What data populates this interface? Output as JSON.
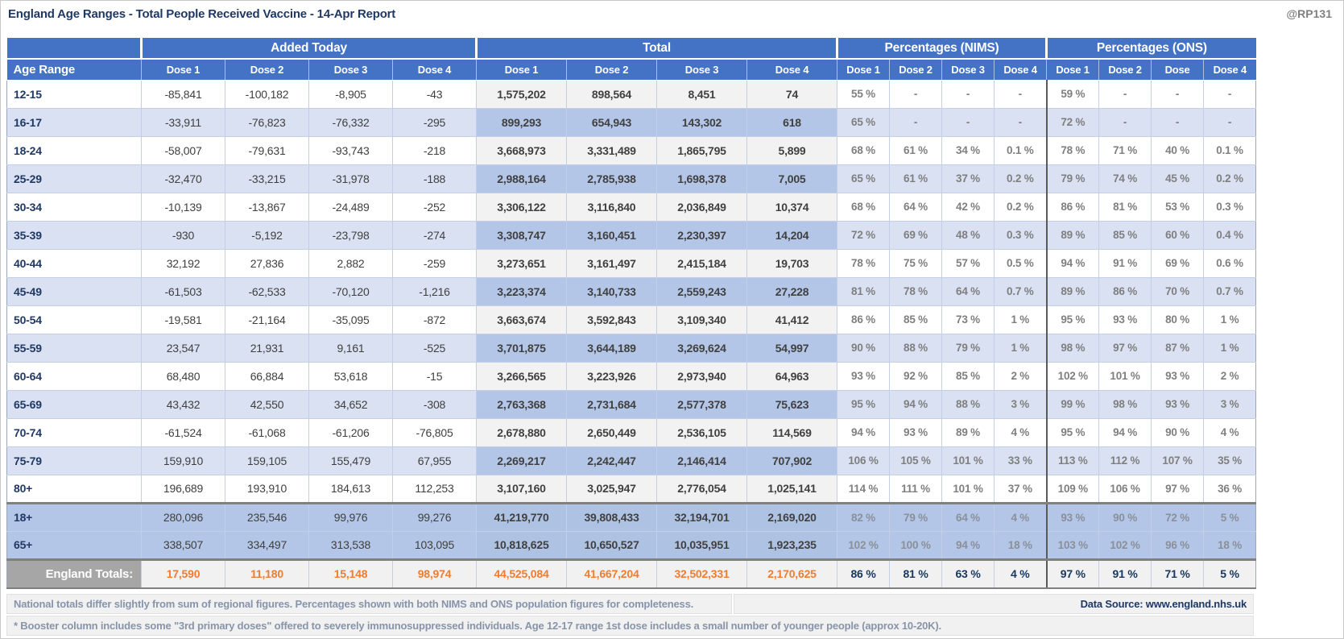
{
  "header": {
    "title": "England Age Ranges - Total People Received Vaccine - 14-Apr Report",
    "watermark": "@RP131"
  },
  "chart_data": {
    "type": "table",
    "row_header": "Age Range",
    "groups": [
      {
        "label": "Added Today",
        "columns": [
          "Dose 1",
          "Dose 2",
          "Dose 3",
          "Dose 4"
        ]
      },
      {
        "label": "Total",
        "columns": [
          "Dose 1",
          "Dose 2",
          "Dose 3",
          "Dose 4"
        ]
      },
      {
        "label": "Percentages (NIMS)",
        "columns": [
          "Dose 1",
          "Dose 2",
          "Dose 3",
          "Dose 4"
        ]
      },
      {
        "label": "Percentages (ONS)",
        "columns": [
          "Dose 1",
          "Dose 2",
          "Dose",
          "Dose 4"
        ]
      }
    ],
    "rows": [
      {
        "age": "12-15",
        "kind": "data",
        "added": [
          "-85,841",
          "-100,182",
          "-8,905",
          "-43"
        ],
        "total": [
          "1,575,202",
          "898,564",
          "8,451",
          "74"
        ],
        "nims": [
          "55 %",
          "-",
          "-",
          "-"
        ],
        "ons": [
          "59 %",
          "-",
          "-",
          "-"
        ]
      },
      {
        "age": "16-17",
        "kind": "data",
        "added": [
          "-33,911",
          "-76,823",
          "-76,332",
          "-295"
        ],
        "total": [
          "899,293",
          "654,943",
          "143,302",
          "618"
        ],
        "nims": [
          "65 %",
          "-",
          "-",
          "-"
        ],
        "ons": [
          "72 %",
          "-",
          "-",
          "-"
        ]
      },
      {
        "age": "18-24",
        "kind": "data",
        "added": [
          "-58,007",
          "-79,631",
          "-93,743",
          "-218"
        ],
        "total": [
          "3,668,973",
          "3,331,489",
          "1,865,795",
          "5,899"
        ],
        "nims": [
          "68 %",
          "61 %",
          "34 %",
          "0.1 %"
        ],
        "ons": [
          "78 %",
          "71 %",
          "40 %",
          "0.1 %"
        ]
      },
      {
        "age": "25-29",
        "kind": "data",
        "added": [
          "-32,470",
          "-33,215",
          "-31,978",
          "-188"
        ],
        "total": [
          "2,988,164",
          "2,785,938",
          "1,698,378",
          "7,005"
        ],
        "nims": [
          "65 %",
          "61 %",
          "37 %",
          "0.2 %"
        ],
        "ons": [
          "79 %",
          "74 %",
          "45 %",
          "0.2 %"
        ]
      },
      {
        "age": "30-34",
        "kind": "data",
        "added": [
          "-10,139",
          "-13,867",
          "-24,489",
          "-252"
        ],
        "total": [
          "3,306,122",
          "3,116,840",
          "2,036,849",
          "10,374"
        ],
        "nims": [
          "68 %",
          "64 %",
          "42 %",
          "0.2 %"
        ],
        "ons": [
          "86 %",
          "81 %",
          "53 %",
          "0.3 %"
        ]
      },
      {
        "age": "35-39",
        "kind": "data",
        "added": [
          "-930",
          "-5,192",
          "-23,798",
          "-274"
        ],
        "total": [
          "3,308,747",
          "3,160,451",
          "2,230,397",
          "14,204"
        ],
        "nims": [
          "72 %",
          "69 %",
          "48 %",
          "0.3 %"
        ],
        "ons": [
          "89 %",
          "85 %",
          "60 %",
          "0.4 %"
        ]
      },
      {
        "age": "40-44",
        "kind": "data",
        "added": [
          "32,192",
          "27,836",
          "2,882",
          "-259"
        ],
        "total": [
          "3,273,651",
          "3,161,497",
          "2,415,184",
          "19,703"
        ],
        "nims": [
          "78 %",
          "75 %",
          "57 %",
          "0.5 %"
        ],
        "ons": [
          "94 %",
          "91 %",
          "69 %",
          "0.6 %"
        ]
      },
      {
        "age": "45-49",
        "kind": "data",
        "added": [
          "-61,503",
          "-62,533",
          "-70,120",
          "-1,216"
        ],
        "total": [
          "3,223,374",
          "3,140,733",
          "2,559,243",
          "27,228"
        ],
        "nims": [
          "81 %",
          "78 %",
          "64 %",
          "0.7 %"
        ],
        "ons": [
          "89 %",
          "86 %",
          "70 %",
          "0.7 %"
        ]
      },
      {
        "age": "50-54",
        "kind": "data",
        "added": [
          "-19,581",
          "-21,164",
          "-35,095",
          "-872"
        ],
        "total": [
          "3,663,674",
          "3,592,843",
          "3,109,340",
          "41,412"
        ],
        "nims": [
          "86 %",
          "85 %",
          "73 %",
          "1 %"
        ],
        "ons": [
          "95 %",
          "93 %",
          "80 %",
          "1 %"
        ]
      },
      {
        "age": "55-59",
        "kind": "data",
        "added": [
          "23,547",
          "21,931",
          "9,161",
          "-525"
        ],
        "total": [
          "3,701,875",
          "3,644,189",
          "3,269,624",
          "54,997"
        ],
        "nims": [
          "90 %",
          "88 %",
          "79 %",
          "1 %"
        ],
        "ons": [
          "98 %",
          "97 %",
          "87 %",
          "1 %"
        ]
      },
      {
        "age": "60-64",
        "kind": "data",
        "added": [
          "68,480",
          "66,884",
          "53,618",
          "-15"
        ],
        "total": [
          "3,266,565",
          "3,223,926",
          "2,973,940",
          "64,963"
        ],
        "nims": [
          "93 %",
          "92 %",
          "85 %",
          "2 %"
        ],
        "ons": [
          "102 %",
          "101 %",
          "93 %",
          "2 %"
        ]
      },
      {
        "age": "65-69",
        "kind": "data",
        "added": [
          "43,432",
          "42,550",
          "34,652",
          "-308"
        ],
        "total": [
          "2,763,368",
          "2,731,684",
          "2,577,378",
          "75,623"
        ],
        "nims": [
          "95 %",
          "94 %",
          "88 %",
          "3 %"
        ],
        "ons": [
          "99 %",
          "98 %",
          "93 %",
          "3 %"
        ]
      },
      {
        "age": "70-74",
        "kind": "data",
        "added": [
          "-61,524",
          "-61,068",
          "-61,206",
          "-76,805"
        ],
        "total": [
          "2,678,880",
          "2,650,449",
          "2,536,105",
          "114,569"
        ],
        "nims": [
          "94 %",
          "93 %",
          "89 %",
          "4 %"
        ],
        "ons": [
          "95 %",
          "94 %",
          "90 %",
          "4 %"
        ]
      },
      {
        "age": "75-79",
        "kind": "data",
        "added": [
          "159,910",
          "159,105",
          "155,479",
          "67,955"
        ],
        "total": [
          "2,269,217",
          "2,242,447",
          "2,146,414",
          "707,902"
        ],
        "nims": [
          "106 %",
          "105 %",
          "101 %",
          "33 %"
        ],
        "ons": [
          "113 %",
          "112 %",
          "107 %",
          "35 %"
        ]
      },
      {
        "age": "80+",
        "kind": "data",
        "added": [
          "196,689",
          "193,910",
          "184,613",
          "112,253"
        ],
        "total": [
          "3,107,160",
          "3,025,947",
          "2,776,054",
          "1,025,141"
        ],
        "nims": [
          "114 %",
          "111 %",
          "101 %",
          "37 %"
        ],
        "ons": [
          "109 %",
          "106 %",
          "97 %",
          "36 %"
        ]
      },
      {
        "age": "18+",
        "kind": "summary",
        "added": [
          "280,096",
          "235,546",
          "99,976",
          "99,276"
        ],
        "total": [
          "41,219,770",
          "39,808,433",
          "32,194,701",
          "2,169,020"
        ],
        "nims": [
          "82 %",
          "79 %",
          "64 %",
          "4 %"
        ],
        "ons": [
          "93 %",
          "90 %",
          "72 %",
          "5 %"
        ]
      },
      {
        "age": "65+",
        "kind": "summary",
        "added": [
          "338,507",
          "334,497",
          "313,538",
          "103,095"
        ],
        "total": [
          "10,818,625",
          "10,650,527",
          "10,035,951",
          "1,923,235"
        ],
        "nims": [
          "102 %",
          "100 %",
          "94 %",
          "18 %"
        ],
        "ons": [
          "103 %",
          "102 %",
          "96 %",
          "18 %"
        ]
      },
      {
        "age": "England Totals:",
        "kind": "total",
        "added": [
          "17,590",
          "11,180",
          "15,148",
          "98,974"
        ],
        "total": [
          "44,525,084",
          "41,667,204",
          "32,502,331",
          "2,170,625"
        ],
        "nims": [
          "86 %",
          "81 %",
          "63 %",
          "4 %"
        ],
        "ons": [
          "97 %",
          "91 %",
          "71 %",
          "5 %"
        ]
      }
    ]
  },
  "footnotes": {
    "line1": "National totals differ slightly from sum of regional figures. Percentages shown with both NIMS and ONS population figures for completeness.",
    "line2": "* Booster column includes some \"3rd primary doses\" offered to severely immunosuppressed individuals. Age 12-17 range 1st dose includes a small number of younger people (approx 10-20K).",
    "data_source": "Data Source: www.england.nhs.uk"
  },
  "colors": {
    "header_blue": "#4472C4",
    "navy_text": "#1F3864",
    "row_alt_blue": "#D9E1F2",
    "total_alt_blue": "#B4C6E7",
    "summary_blue": "#B4C6E7",
    "totals_label_gray": "#A6A6A6",
    "totals_value_orange": "#ED7D31",
    "percent_gray": "#7F7F7F"
  }
}
